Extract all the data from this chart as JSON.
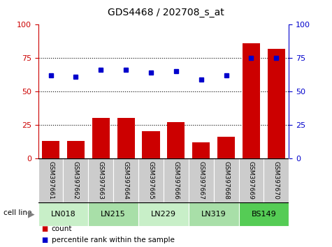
{
  "title": "GDS4468 / 202708_s_at",
  "samples": [
    "GSM397661",
    "GSM397662",
    "GSM397663",
    "GSM397664",
    "GSM397665",
    "GSM397666",
    "GSM397667",
    "GSM397668",
    "GSM397669",
    "GSM397670"
  ],
  "counts": [
    13,
    13,
    30,
    30,
    20,
    27,
    12,
    16,
    86,
    82
  ],
  "percentile_ranks": [
    62,
    61,
    66,
    66,
    64,
    65,
    59,
    62,
    75,
    75
  ],
  "bar_color": "#cc0000",
  "dot_color": "#0000cc",
  "left_axis_color": "#cc0000",
  "right_axis_color": "#0000cc",
  "ylim": [
    0,
    100
  ],
  "yticks": [
    0,
    25,
    50,
    75,
    100
  ],
  "grid_lines": [
    25,
    50,
    75
  ],
  "cell_line_groups": [
    {
      "name": "LN018",
      "indices": [
        0,
        1
      ],
      "color": "#c8efc8"
    },
    {
      "name": "LN215",
      "indices": [
        2,
        3
      ],
      "color": "#a8dfa8"
    },
    {
      "name": "LN229",
      "indices": [
        4,
        5
      ],
      "color": "#c8efc8"
    },
    {
      "name": "LN319",
      "indices": [
        6,
        7
      ],
      "color": "#a8dfa8"
    },
    {
      "name": "BS149",
      "indices": [
        8,
        9
      ],
      "color": "#55cc55"
    }
  ],
  "legend_count_color": "#cc0000",
  "legend_dot_color": "#0000cc",
  "xticklabel_bg": "#cccccc"
}
